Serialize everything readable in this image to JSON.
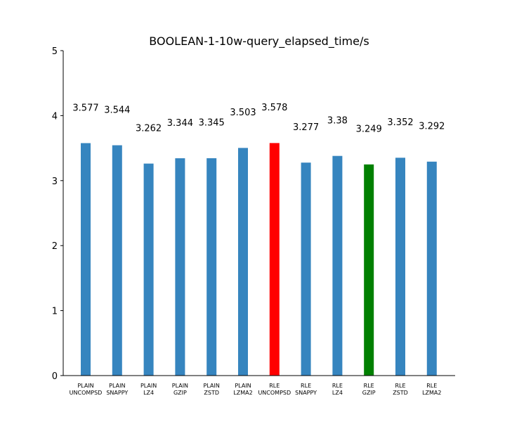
{
  "chart_data": {
    "type": "bar",
    "title": "BOOLEAN-1-10w-query_elapsed_time/s",
    "xlabel": "",
    "ylabel": "",
    "ylim": [
      0,
      5
    ],
    "yticks": [
      "0",
      "1",
      "2",
      "3",
      "4",
      "5"
    ],
    "grid": false,
    "categories": [
      [
        "PLAIN",
        "UNCOMPSD"
      ],
      [
        "PLAIN",
        "SNAPPY"
      ],
      [
        "PLAIN",
        "LZ4"
      ],
      [
        "PLAIN",
        "GZIP"
      ],
      [
        "PLAIN",
        "ZSTD"
      ],
      [
        "PLAIN",
        "LZMA2"
      ],
      [
        "RLE",
        "UNCOMPSD"
      ],
      [
        "RLE",
        "SNAPPY"
      ],
      [
        "RLE",
        "LZ4"
      ],
      [
        "RLE",
        "GZIP"
      ],
      [
        "RLE",
        "ZSTD"
      ],
      [
        "RLE",
        "LZMA2"
      ]
    ],
    "values": [
      3.577,
      3.544,
      3.262,
      3.344,
      3.345,
      3.503,
      3.578,
      3.277,
      3.38,
      3.249,
      3.352,
      3.292
    ],
    "value_labels": [
      "3.577",
      "3.544",
      "3.262",
      "3.344",
      "3.345",
      "3.503",
      "3.578",
      "3.277",
      "3.38",
      "3.249",
      "3.352",
      "3.292"
    ],
    "label_offsets": [
      0.5,
      0.5,
      0.5,
      0.5,
      0.5,
      0.5,
      0.5,
      0.5,
      0.5,
      0.5,
      0.5,
      0.5
    ],
    "colors": {
      "default": "#3685bf",
      "max": "#ff0000",
      "min": "#008000"
    }
  }
}
